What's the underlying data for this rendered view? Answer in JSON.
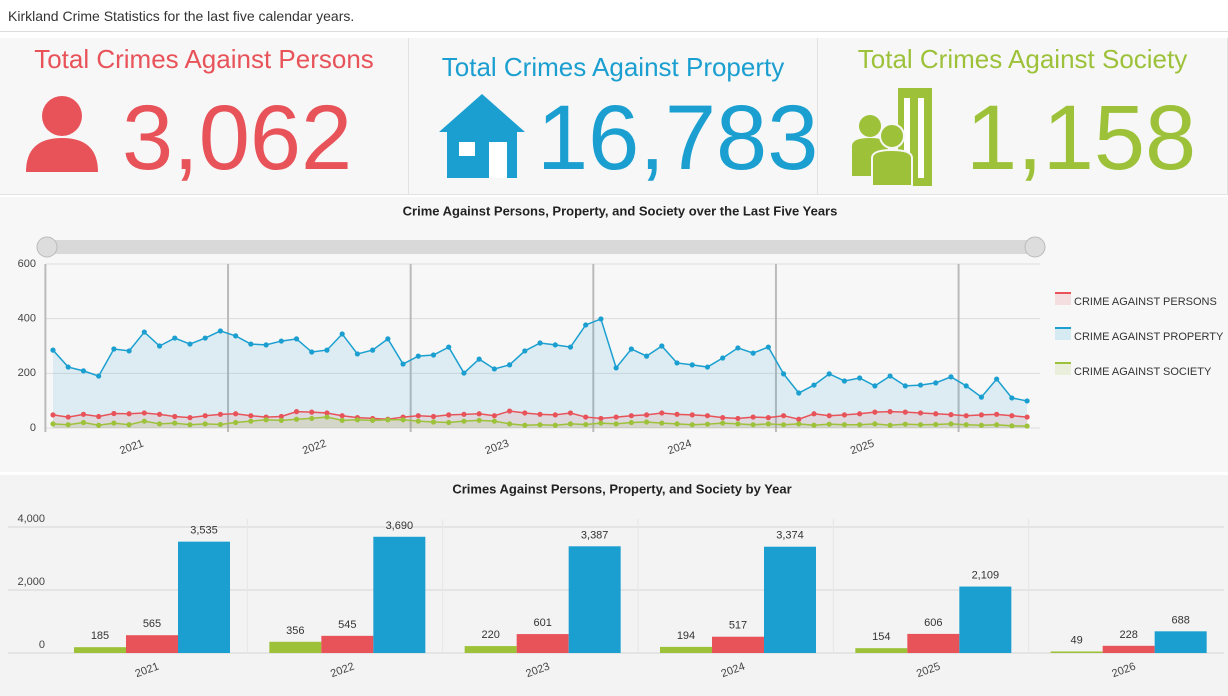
{
  "header": {
    "title": "Kirkland Crime Statistics for the last five calendar years."
  },
  "indicators": [
    {
      "title": "Total Crimes Against Persons",
      "value": "3,062",
      "color": "#e8535a"
    },
    {
      "title": "Total Crimes Against Property",
      "value": "16,783",
      "color": "#1a9fd0"
    },
    {
      "title": "Total Crimes Against Society",
      "value": "1,158",
      "color": "#9dc23a"
    }
  ],
  "chart_data": [
    {
      "type": "line",
      "title": "Crime Against Persons, Property, and Society over the Last Five Years",
      "categories": [
        null,
        null,
        null,
        null,
        null,
        null,
        "2021",
        null,
        null,
        null,
        null,
        null,
        null,
        null,
        null,
        null,
        null,
        null,
        "2022",
        null,
        null,
        null,
        null,
        null,
        null,
        null,
        null,
        null,
        null,
        null,
        "2023",
        null,
        null,
        null,
        null,
        null,
        null,
        null,
        null,
        null,
        null,
        null,
        "2024",
        null,
        null,
        null,
        null,
        null,
        null,
        null,
        null,
        null,
        null,
        null,
        "2025",
        null,
        null,
        null,
        null,
        null,
        null,
        null,
        null,
        null,
        null
      ],
      "series": [
        {
          "name": "CRIME AGAINST PERSONS",
          "color": "#e8535a",
          "values": [
            48,
            40,
            50,
            42,
            53,
            52,
            55,
            50,
            42,
            38,
            45,
            50,
            52,
            45,
            40,
            42,
            60,
            58,
            55,
            45,
            38,
            35,
            32,
            40,
            45,
            42,
            48,
            50,
            52,
            45,
            62,
            55,
            50,
            48,
            55,
            40,
            35,
            40,
            45,
            48,
            55,
            50,
            48,
            45,
            38,
            35,
            40,
            38,
            45,
            32,
            52,
            45,
            48,
            52,
            58,
            60,
            58,
            55,
            52,
            49,
            45,
            48,
            50,
            45,
            40
          ]
        },
        {
          "name": "CRIME AGAINST PROPERTY",
          "color": "#1a9fd0",
          "values": [
            285,
            223,
            209,
            190,
            289,
            282,
            351,
            300,
            329,
            307,
            329,
            355,
            337,
            307,
            304,
            318,
            326,
            278,
            285,
            344,
            271,
            285,
            326,
            234,
            263,
            267,
            296,
            201,
            252,
            216,
            231,
            282,
            311,
            304,
            296,
            377,
            399,
            220,
            289,
            263,
            300,
            238,
            231,
            223,
            256,
            293,
            274,
            296,
            198,
            128,
            157,
            198,
            172,
            183,
            154,
            190,
            154,
            157,
            165,
            187,
            154,
            113,
            179,
            110,
            99
          ]
        },
        {
          "name": "CRIME AGAINST SOCIETY",
          "color": "#9dc23a",
          "values": [
            15,
            12,
            20,
            10,
            18,
            12,
            25,
            15,
            18,
            12,
            15,
            13,
            20,
            25,
            30,
            28,
            32,
            35,
            40,
            28,
            30,
            28,
            30,
            30,
            25,
            22,
            20,
            25,
            28,
            25,
            15,
            10,
            12,
            10,
            15,
            13,
            18,
            15,
            20,
            22,
            18,
            15,
            12,
            14,
            18,
            15,
            12,
            15,
            12,
            15,
            10,
            14,
            12,
            12,
            15,
            10,
            14,
            12,
            13,
            15,
            12,
            10,
            12,
            8,
            7
          ]
        }
      ],
      "ylim": [
        0,
        600
      ],
      "yticks": [
        0,
        200,
        400,
        600
      ],
      "grid": true,
      "legend": "right"
    },
    {
      "type": "bar",
      "title": "Crimes Against Persons, Property, and Society by Year",
      "categories": [
        "2021",
        "2022",
        "2023",
        "2024",
        "2025",
        "2026"
      ],
      "series": [
        {
          "color": "#9dc23a",
          "values": [
            185,
            356,
            220,
            194,
            154,
            49
          ]
        },
        {
          "color": "#e8535a",
          "values": [
            565,
            545,
            601,
            517,
            606,
            228
          ]
        },
        {
          "color": "#1a9fd0",
          "values": [
            3535,
            3690,
            3387,
            3374,
            2109,
            688
          ],
          "value_labels": [
            "3,535",
            "3,690",
            "3,387",
            "3,374",
            "2,109",
            "688"
          ]
        }
      ],
      "ylim": [
        0,
        4000
      ],
      "yticks": [
        0,
        {
          "value": 2000,
          "label": "2,000"
        },
        {
          "value": 4000,
          "label": "4,000"
        }
      ],
      "grid": true
    }
  ]
}
